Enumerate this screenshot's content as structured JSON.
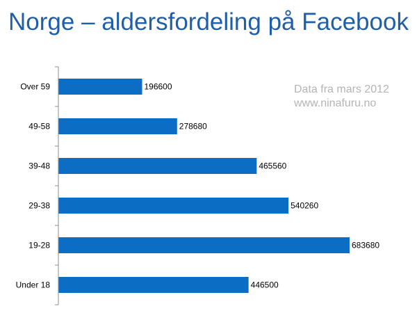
{
  "page": {
    "title": "Norge – aldersfordeling på Facebook",
    "note_line1": "Data fra mars 2012",
    "note_line2": "www.ninafuru.no"
  },
  "chart_data": {
    "type": "bar",
    "orientation": "horizontal",
    "title": "Norge – aldersfordeling på Facebook",
    "categories": [
      "Over 59",
      "49-58",
      "39-48",
      "29-38",
      "19-28",
      "Under 18"
    ],
    "values": [
      196600,
      278680,
      465560,
      540260,
      683680,
      446500
    ],
    "value_labels": [
      "196600",
      "278680",
      "465560",
      "540260",
      "683680",
      "446500"
    ],
    "xlabel": "",
    "ylabel": "",
    "xlim": [
      0,
      800000
    ],
    "grid": false,
    "legend": "none",
    "bar_color": "#0b6dc4",
    "axis_color": "#8c8c8c"
  }
}
